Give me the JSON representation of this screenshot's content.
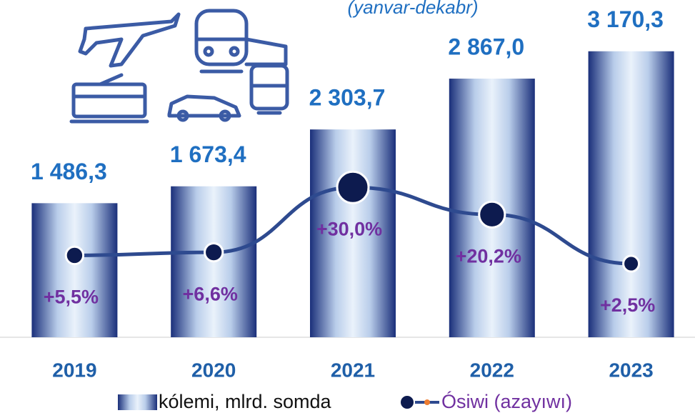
{
  "chart_data": {
    "type": "bar",
    "subtitle": "(yanvar-dekabr)",
    "categories": [
      "2019",
      "2020",
      "2021",
      "2022",
      "2023"
    ],
    "series": [
      {
        "name": "kólemi, mlrd. somda",
        "type": "bar",
        "color": "#1a2f7a",
        "values": [
          1486.3,
          1673.4,
          2303.7,
          2867.0,
          3170.3
        ],
        "value_labels": [
          "1 486,3",
          "1 673,4",
          "2 303,7",
          "2 867,0",
          "3 170,3"
        ]
      },
      {
        "name": "Ósiwi (azayıwı)",
        "type": "line",
        "axis": "y2",
        "color": "#2e4a8f",
        "values": [
          5.5,
          6.6,
          30.0,
          20.2,
          2.5
        ],
        "value_labels": [
          "+5,5%",
          "+6,6%",
          "+30,0%",
          "+20,2%",
          "+2,5%"
        ]
      }
    ],
    "ylim": [
      0,
      3200
    ],
    "y2lim": [
      -24,
      80
    ]
  }
}
